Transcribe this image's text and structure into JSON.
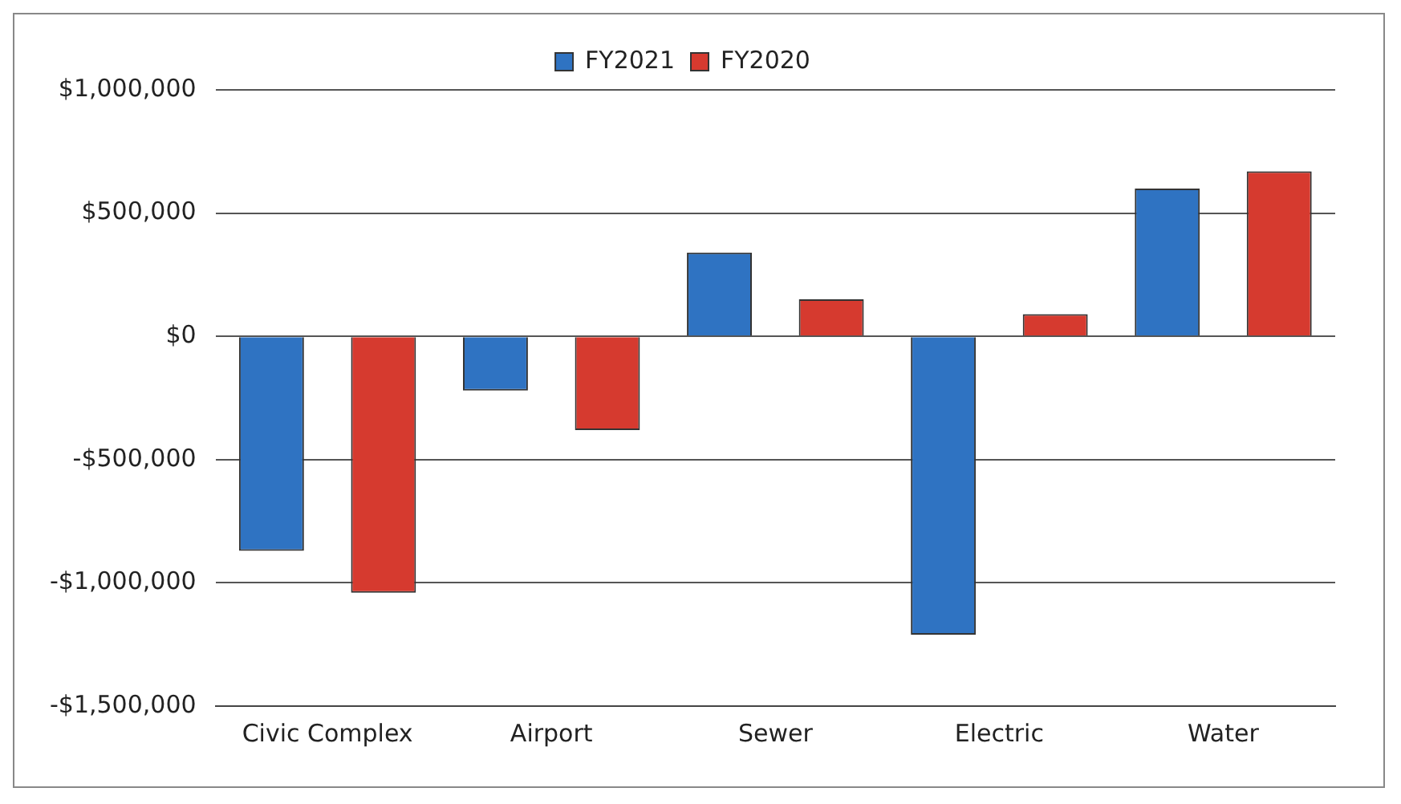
{
  "chart_data": {
    "type": "bar",
    "categories": [
      "Civic Complex",
      "Airport",
      "Sewer",
      "Electric",
      "Water"
    ],
    "series": [
      {
        "name": "FY2021",
        "color": "#2f73c2",
        "values": [
          -870000,
          -220000,
          340000,
          -1210000,
          600000
        ]
      },
      {
        "name": "FY2020",
        "color": "#d63a2f",
        "values": [
          -1040000,
          -380000,
          150000,
          90000,
          670000
        ]
      }
    ],
    "ylim": [
      -1500000,
      1000000
    ],
    "yticks": [
      {
        "value": -1500000,
        "label": "-$1,500,000"
      },
      {
        "value": -1000000,
        "label": "-$1,000,000"
      },
      {
        "value": -500000,
        "label": "-$500,000"
      },
      {
        "value": 0,
        "label": "$0"
      },
      {
        "value": 500000,
        "label": "$500,000"
      },
      {
        "value": 1000000,
        "label": "$1,000,000"
      }
    ],
    "grid": "y",
    "legend": "top"
  }
}
